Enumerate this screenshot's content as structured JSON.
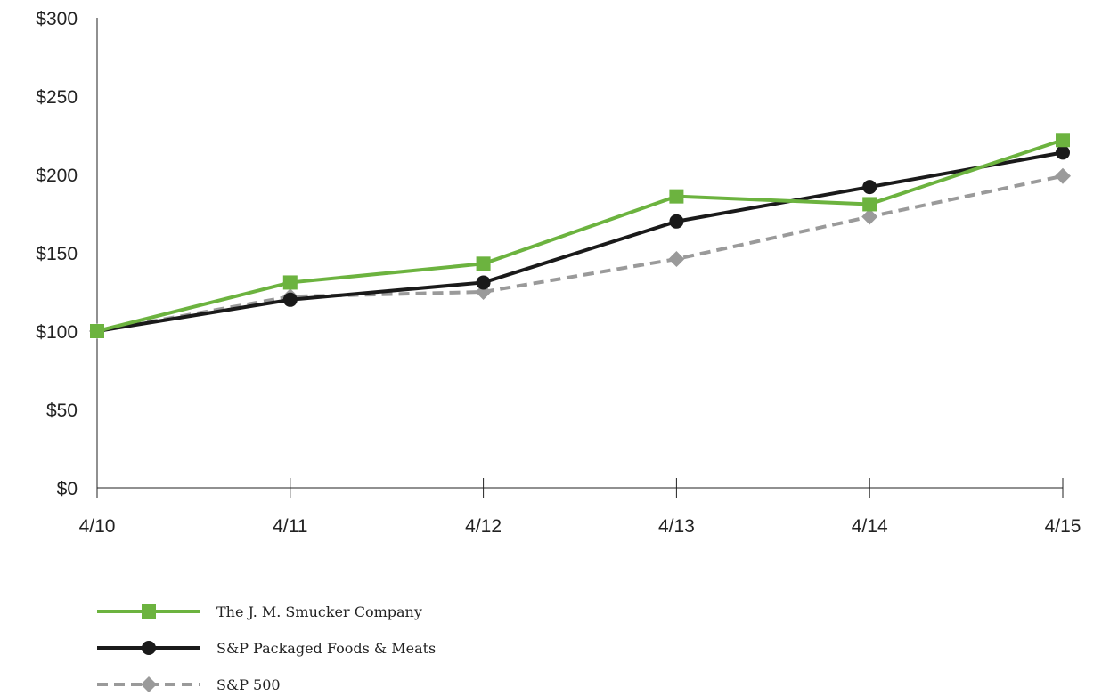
{
  "chart_data": {
    "type": "line",
    "title": "",
    "xlabel": "",
    "ylabel": "",
    "categories": [
      "4/10",
      "4/11",
      "4/12",
      "4/13",
      "4/14",
      "4/15"
    ],
    "ylim": [
      0,
      300
    ],
    "yticks": [
      0,
      50,
      100,
      150,
      200,
      250,
      300
    ],
    "ytick_labels": [
      "$0",
      "$50",
      "$100",
      "$150",
      "$200",
      "$250",
      "$300"
    ],
    "grid": false,
    "legend_position": "bottom-left",
    "series": [
      {
        "name": "The J. M. Smucker Company",
        "values": [
          100,
          131,
          143,
          186,
          181,
          222
        ],
        "color": "#6cb33f",
        "marker": "square",
        "dash": "solid"
      },
      {
        "name": "S&P Packaged Foods & Meats",
        "values": [
          100,
          120,
          131,
          170,
          192,
          214
        ],
        "color": "#1a1a1a",
        "marker": "circle",
        "dash": "solid"
      },
      {
        "name": "S&P 500",
        "values": [
          100,
          122,
          125,
          146,
          173,
          199
        ],
        "color": "#9a9a9a",
        "marker": "diamond",
        "dash": "dashed"
      }
    ]
  }
}
